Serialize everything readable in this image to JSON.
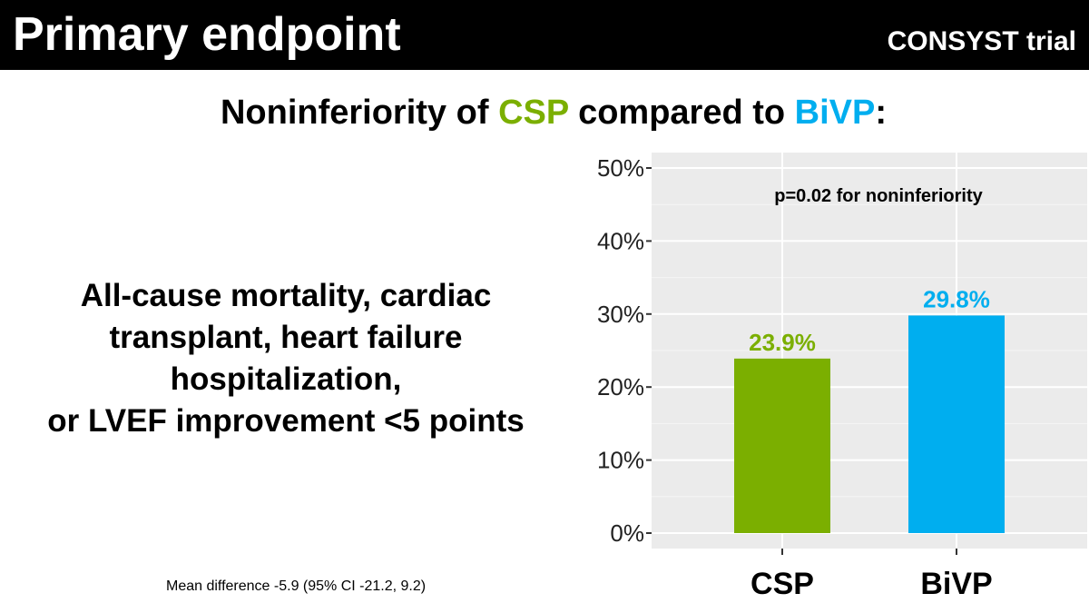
{
  "header": {
    "title": "Primary endpoint",
    "trial": "CONSYST trial"
  },
  "subtitle": {
    "prefix": "Noninferiority of ",
    "csp": "CSP",
    "middle": " compared to ",
    "bivp": "BiVP",
    "suffix": ":"
  },
  "endpoint": {
    "lines": [
      "All-cause mortality, cardiac",
      "transplant, heart failure",
      "hospitalization,",
      "or LVEF improvement <5 points"
    ]
  },
  "footnote": "Mean difference -5.9 (95% CI -21.2, 9.2)",
  "colors": {
    "csp": "#7BAF00",
    "bivp": "#00AEEF",
    "panel": "#EBEBEB"
  },
  "chart_data": {
    "type": "bar",
    "categories": [
      "CSP",
      "BiVP"
    ],
    "values": [
      23.9,
      29.8
    ],
    "data_labels": [
      "23.9%",
      "29.8%"
    ],
    "annotation": "p=0.02 for noninferiority",
    "ylim": [
      0,
      50
    ],
    "yticks": [
      0,
      10,
      20,
      30,
      40,
      50
    ],
    "ytick_labels": [
      "0%",
      "10%",
      "20%",
      "30%",
      "40%",
      "50%"
    ],
    "grid": true
  }
}
